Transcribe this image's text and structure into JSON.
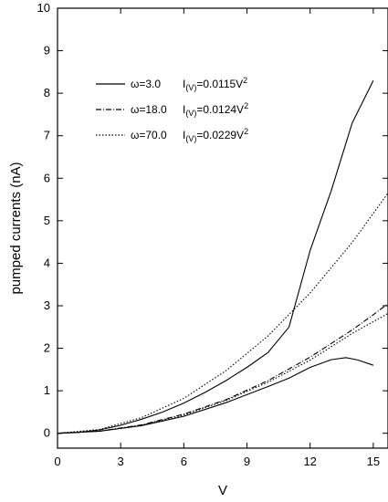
{
  "chart_data": {
    "type": "line",
    "xlabel": "V",
    "ylabel": "pumped currents  (nA)",
    "xlim": [
      0,
      15.7
    ],
    "ylim": [
      -0.35,
      10
    ],
    "x_ticks": [
      "0",
      "3",
      "6",
      "9",
      "12",
      "15"
    ],
    "y_ticks": [
      "0",
      "1",
      "2",
      "3",
      "4",
      "5",
      "6",
      "7",
      "8",
      "9",
      "10"
    ],
    "grid": false,
    "legend_position": "top-left",
    "series": [
      {
        "name": "ω=3.0",
        "fit": "I(V)=0.0115V²",
        "style": "solid",
        "curves": [
          [
            [
              0,
              0
            ],
            [
              1,
              0.02
            ],
            [
              2,
              0.08
            ],
            [
              3,
              0.19
            ],
            [
              4,
              0.33
            ],
            [
              5,
              0.5
            ],
            [
              6,
              0.71
            ],
            [
              7,
              0.96
            ],
            [
              8,
              1.24
            ],
            [
              9,
              1.55
            ],
            [
              10,
              1.9
            ],
            [
              11,
              2.5
            ],
            [
              12,
              4.3
            ],
            [
              13,
              5.7
            ],
            [
              14,
              7.3
            ],
            [
              15,
              8.3
            ]
          ],
          [
            [
              0,
              0
            ],
            [
              2,
              0.05
            ],
            [
              4,
              0.18
            ],
            [
              6,
              0.4
            ],
            [
              8,
              0.72
            ],
            [
              10,
              1.1
            ],
            [
              11,
              1.3
            ],
            [
              12,
              1.55
            ],
            [
              13,
              1.73
            ],
            [
              13.7,
              1.78
            ],
            [
              14.3,
              1.72
            ],
            [
              15,
              1.6
            ]
          ]
        ]
      },
      {
        "name": "ω=18.0",
        "fit": "I(V)=0.0124V²",
        "style": "dash-dot",
        "curves": [
          [
            [
              0,
              0
            ],
            [
              2,
              0.05
            ],
            [
              4,
              0.2
            ],
            [
              6,
              0.45
            ],
            [
              8,
              0.79
            ],
            [
              10,
              1.24
            ],
            [
              12,
              1.79
            ],
            [
              14,
              2.43
            ],
            [
              15,
              2.79
            ],
            [
              15.7,
              3.05
            ]
          ]
        ]
      },
      {
        "name": "ω=70.0",
        "fit": "I(V)=0.0229V²",
        "style": "dotted",
        "curves": [
          [
            [
              0,
              0
            ],
            [
              2,
              0.09
            ],
            [
              4,
              0.37
            ],
            [
              6,
              0.82
            ],
            [
              8,
              1.47
            ],
            [
              10,
              2.29
            ],
            [
              12,
              3.3
            ],
            [
              14,
              4.49
            ],
            [
              15.7,
              5.65
            ]
          ],
          [
            [
              0,
              0
            ],
            [
              2,
              0.05
            ],
            [
              4,
              0.19
            ],
            [
              6,
              0.43
            ],
            [
              8,
              0.77
            ],
            [
              10,
              1.2
            ],
            [
              12,
              1.72
            ],
            [
              14,
              2.35
            ],
            [
              15.7,
              2.82
            ]
          ]
        ]
      }
    ]
  }
}
